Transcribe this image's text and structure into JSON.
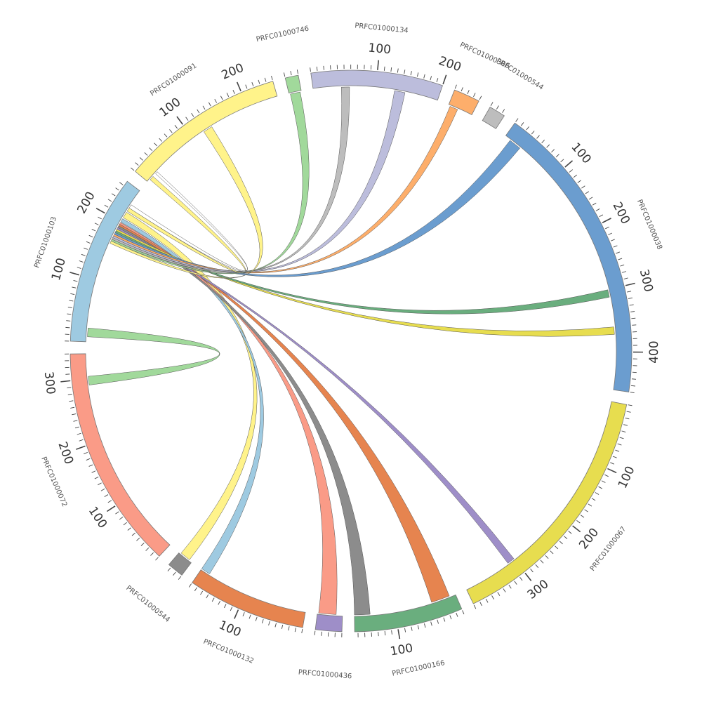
{
  "chart_data": {
    "type": "chord",
    "segments": [
      {
        "name": "PRFC01000103",
        "length": 258,
        "color": "#9ecae1"
      },
      {
        "name": "PRFC01000091",
        "length": 250,
        "color": "#fff38a"
      },
      {
        "name": "PRFC01000746",
        "length": 20,
        "color": "#a1d99b"
      },
      {
        "name": "PRFC01000134",
        "length": 200,
        "color": "#bcbddc"
      },
      {
        "name": "PRFC01000306",
        "length": 40,
        "color": "#fdae6b"
      },
      {
        "name": "PRFC01000544",
        "length": 25,
        "color": "#bdbdbd",
        "display_name": "PRFC01000544"
      },
      {
        "name": "PRFC01000038",
        "length": 460,
        "color": "#6b9dcf"
      },
      {
        "name": "PRFC01000067",
        "length": 390,
        "color": "#e7dd4f"
      },
      {
        "name": "PRFC01000166",
        "length": 165,
        "color": "#6aae7e"
      },
      {
        "name": "PRFC01000436",
        "length": 40,
        "color": "#9e8ec8"
      },
      {
        "name": "PRFC01000132",
        "length": 180,
        "color": "#e6844f"
      },
      {
        "name": "PRFC01000544",
        "length": 25,
        "color": "#8c8c8c"
      },
      {
        "name": "PRFC01000072",
        "length": 340,
        "color": "#fa9b87"
      }
    ],
    "tick_major_step": 100,
    "tick_minor_step": 10,
    "links": [
      {
        "from": "PRFC01000072",
        "from_range": [
          290,
          304
        ],
        "to": "PRFC01000103",
        "to_range": [
          8,
          22
        ],
        "color": "#a1d99b"
      },
      {
        "from": "PRFC01000103",
        "from_range": [
          208,
          218
        ],
        "to": "PRFC01000544",
        "to_range": [
          5,
          22
        ],
        "color": "#fff38a"
      },
      {
        "from": "PRFC01000103",
        "from_range": [
          200,
          206
        ],
        "to": "PRFC01000132",
        "to_range": [
          165,
          180
        ],
        "color": "#9ecae1"
      },
      {
        "from": "PRFC01000103",
        "from_range": [
          196,
          199
        ],
        "to": "PRFC01000436",
        "to_range": [
          10,
          38
        ],
        "color": "#fa9b87"
      },
      {
        "from": "PRFC01000103",
        "from_range": [
          193,
          196
        ],
        "to": "PRFC01000166",
        "to_range": [
          10,
          40
        ],
        "color": "#e6844f"
      },
      {
        "from": "PRFC01000103",
        "from_range": [
          190,
          193
        ],
        "to": "PRFC01000166",
        "to_range": [
          140,
          165
        ],
        "color": "#8c8c8c"
      },
      {
        "from": "PRFC01000103",
        "from_range": [
          187,
          190
        ],
        "to": "PRFC01000067",
        "to_range": [
          300,
          312
        ],
        "color": "#9e8ec8"
      },
      {
        "from": "PRFC01000103",
        "from_range": [
          184,
          187
        ],
        "to": "PRFC01000038",
        "to_range": [
          360,
          372
        ],
        "color": "#e7dd4f"
      },
      {
        "from": "PRFC01000103",
        "from_range": [
          181,
          184
        ],
        "to": "PRFC01000038",
        "to_range": [
          300,
          312
        ],
        "color": "#6aae7e"
      },
      {
        "from": "PRFC01000103",
        "from_range": [
          178,
          181
        ],
        "to": "PRFC01000038",
        "to_range": [
          10,
          30
        ],
        "color": "#6b9dcf"
      },
      {
        "from": "PRFC01000103",
        "from_range": [
          175,
          178
        ],
        "to": "PRFC01000306",
        "to_range": [
          3,
          16
        ],
        "color": "#fdae6b"
      },
      {
        "from": "PRFC01000103",
        "from_range": [
          172,
          175
        ],
        "to": "PRFC01000134",
        "to_range": [
          130,
          147
        ],
        "color": "#bcbddc"
      },
      {
        "from": "PRFC01000103",
        "from_range": [
          169,
          172
        ],
        "to": "PRFC01000134",
        "to_range": [
          45,
          58
        ],
        "color": "#bdbdbd"
      },
      {
        "from": "PRFC01000103",
        "from_range": [
          166,
          169
        ],
        "to": "PRFC01000746",
        "to_range": [
          2,
          18
        ],
        "color": "#a1d99b"
      },
      {
        "from": "PRFC01000103",
        "from_range": [
          220,
          226
        ],
        "to": "PRFC01000091",
        "to_range": [
          5,
          12
        ],
        "color": "#fff38a"
      },
      {
        "from": "PRFC01000091",
        "from_range": [
          120,
          135
        ],
        "to": "PRFC01000103",
        "to_range": [
          162,
          166
        ],
        "color": "#fff38a"
      },
      {
        "from": "PRFC01000103",
        "from_range": [
          226,
          232
        ],
        "to": "PRFC01000091",
        "to_range": [
          18,
          22
        ],
        "color": "#ffffff"
      }
    ]
  }
}
